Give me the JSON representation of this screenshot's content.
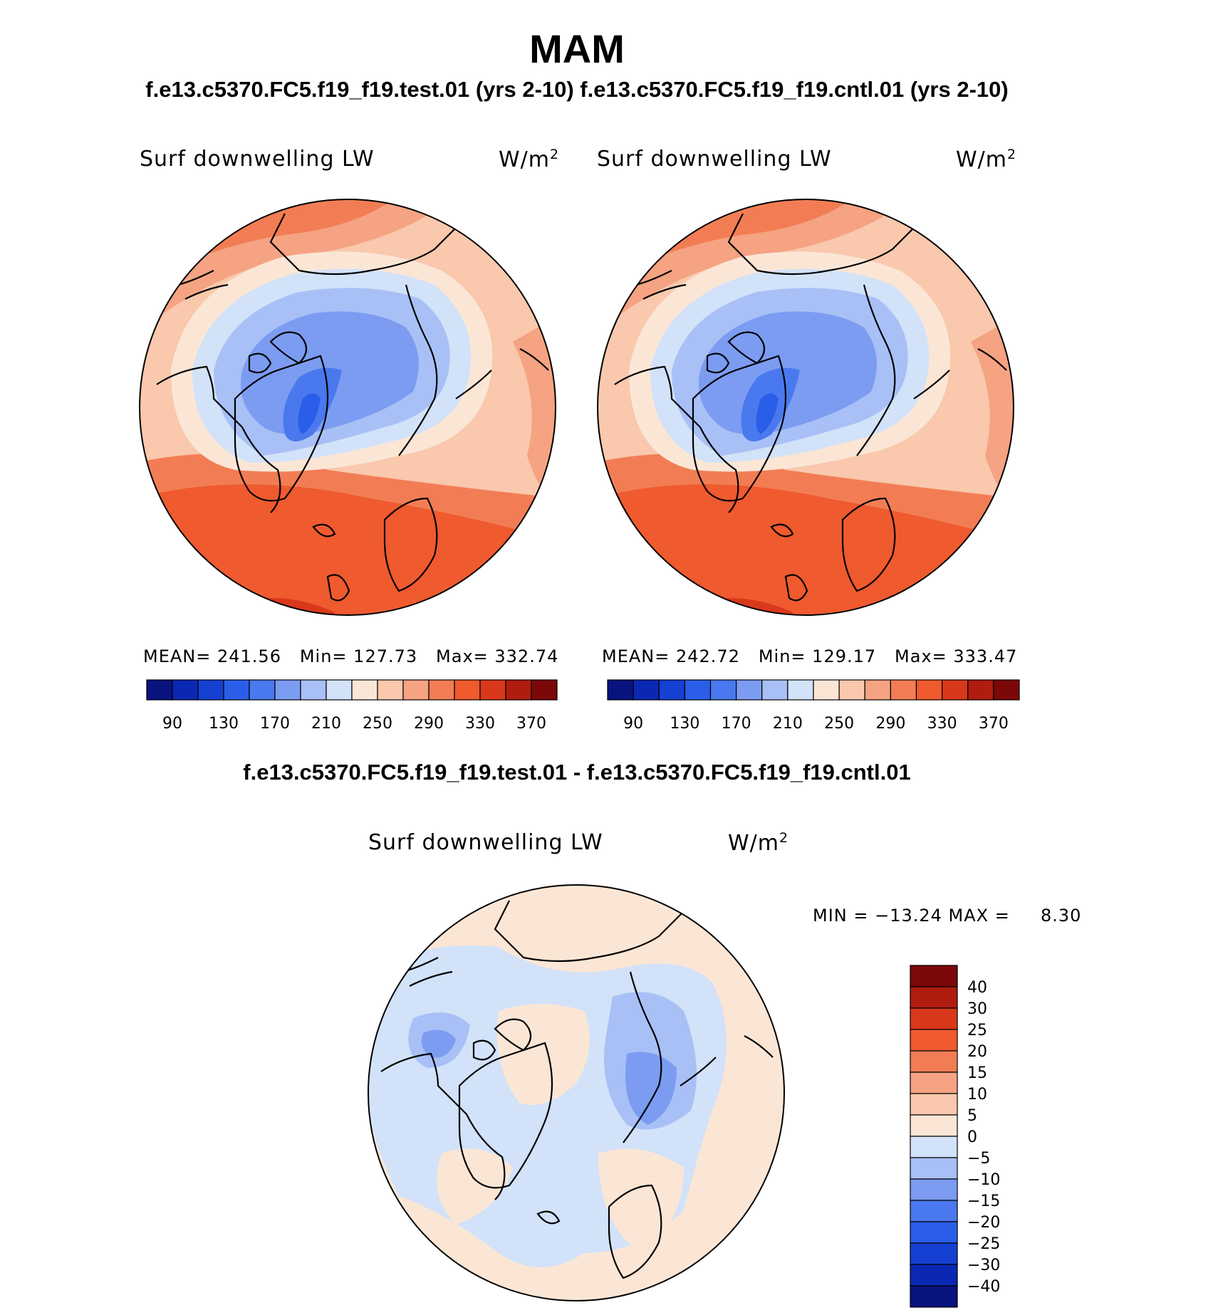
{
  "header": {
    "season": "MAM",
    "cases": "f.e13.c5370.FC5.f19_f19.test.01 (yrs 2-10) f.e13.c5370.FC5.f19_f19.cntl.01 (yrs 2-10)",
    "diff_title": "f.e13.c5370.FC5.f19_f19.test.01 - f.e13.c5370.FC5.f19_f19.cntl.01"
  },
  "colors": {
    "abs_scale": [
      "#08137f",
      "#0a28b4",
      "#1540d2",
      "#2a5ee8",
      "#4a78ee",
      "#7c9cf2",
      "#a8c0f6",
      "#d2e2f8",
      "#fbe6d6",
      "#f9c8ad",
      "#f5a382",
      "#f27d55",
      "#ef5a2f",
      "#d9381a",
      "#b01c10",
      "#7c0808"
    ],
    "diff_scale": [
      "#08137f",
      "#0a28b4",
      "#1540d2",
      "#2a5ee8",
      "#4a78ee",
      "#7c9cf2",
      "#a8c0f6",
      "#d2e2f8",
      "#fbe6d6",
      "#f9c8ad",
      "#f5a382",
      "#f27d55",
      "#ef5a2f",
      "#d9381a",
      "#b01c10",
      "#7c0808"
    ]
  },
  "panels": [
    {
      "variable": "Surf downwelling LW",
      "units": "W/m",
      "units_sup": "2",
      "stats": "MEAN= 241.56   Min= 127.73   Max= 332.74",
      "tick_labels": [
        "90",
        "130",
        "170",
        "210",
        "250",
        "290",
        "330",
        "370"
      ]
    },
    {
      "variable": "Surf downwelling LW",
      "units": "W/m",
      "units_sup": "2",
      "stats": "MEAN= 242.72   Min= 129.17   Max= 333.47",
      "tick_labels": [
        "90",
        "130",
        "170",
        "210",
        "250",
        "290",
        "330",
        "370"
      ]
    }
  ],
  "diff_panel": {
    "variable": "Surf downwelling LW",
    "units": "W/m",
    "units_sup": "2",
    "stats": "MIN = −13.24 MAX =     8.30",
    "tick_labels": [
      "40",
      "30",
      "25",
      "20",
      "15",
      "10",
      "5",
      "0",
      "−5",
      "−10",
      "−15",
      "−20",
      "−25",
      "−30",
      "−40"
    ]
  }
}
